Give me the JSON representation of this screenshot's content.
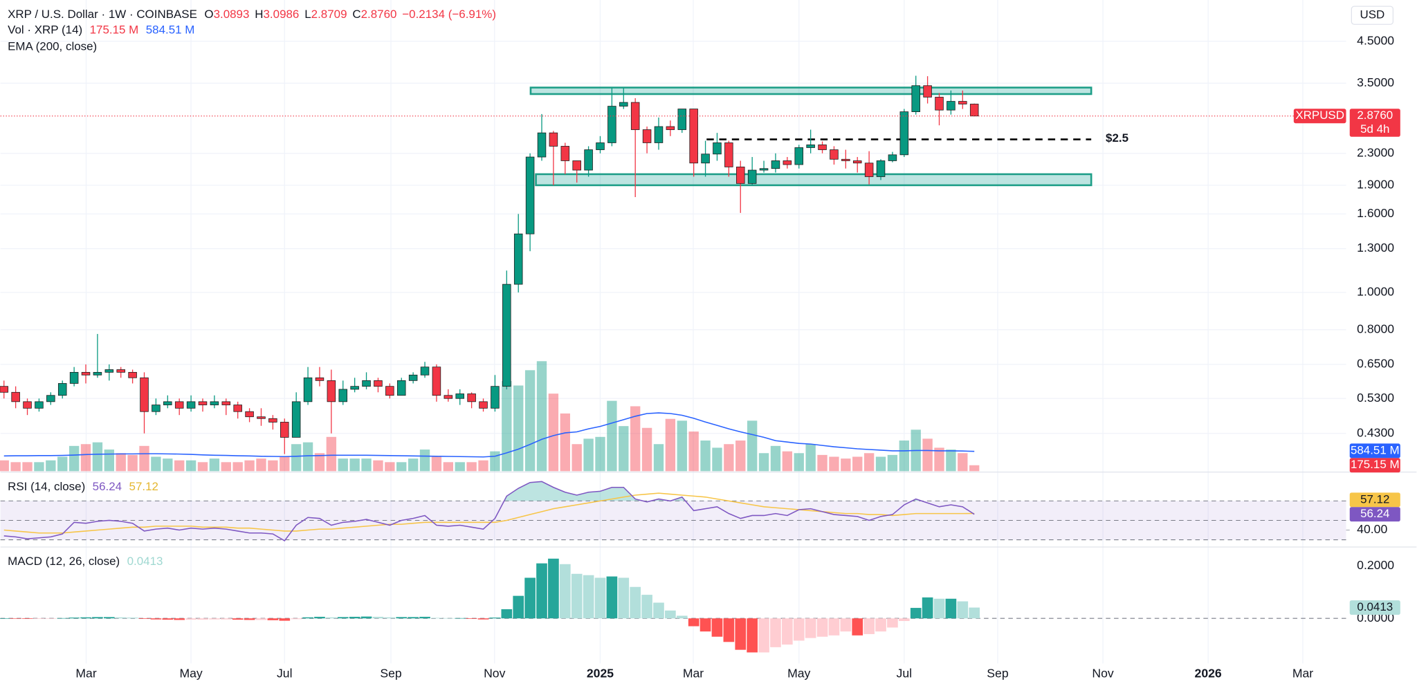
{
  "chart_data": [
    {
      "type": "candlestick",
      "title": "XRP / U.S. Dollar · 1W · COINBASE",
      "ohlc": [
        {
          "label": "O",
          "value": "3.0893"
        },
        {
          "label": "H",
          "value": "3.0986"
        },
        {
          "label": "L",
          "value": "2.8709"
        },
        {
          "label": "C",
          "value": "2.8760"
        }
      ],
      "change": "−0.2134 (−6.91%)",
      "ema_name": "EMA (200, close)",
      "up_color": "#089981",
      "down_color": "#f23645",
      "log": true,
      "grid": true,
      "y_unit": "USD",
      "ylim": [
        0.343,
        5.76
      ],
      "yticks": [
        {
          "value": 4.5,
          "label": "4.5000"
        },
        {
          "value": 3.5,
          "label": "3.5000"
        },
        {
          "value": 2.3,
          "label": "2.3000"
        },
        {
          "value": 1.9,
          "label": "1.9000"
        },
        {
          "value": 1.6,
          "label": "1.6000"
        },
        {
          "value": 1.3,
          "label": "1.3000"
        },
        {
          "value": 1.0,
          "label": "1.0000"
        },
        {
          "value": 0.8,
          "label": "0.8000"
        },
        {
          "value": 0.65,
          "label": "0.6500"
        },
        {
          "value": 0.53,
          "label": "0.5300"
        },
        {
          "value": 0.43,
          "label": "0.4300"
        }
      ],
      "xlim": [
        -0.3,
        114.8
      ],
      "xticks": [
        {
          "value": 7.03,
          "label": "Mar"
        },
        {
          "value": 16.0,
          "label": "May"
        },
        {
          "value": 24.0,
          "label": "Jul"
        },
        {
          "value": 33.1,
          "label": "Sep"
        },
        {
          "value": 41.96,
          "label": "Nov"
        },
        {
          "value": 51.0,
          "label": "2025"
        },
        {
          "value": 58.96,
          "label": "Mar"
        },
        {
          "value": 68.0,
          "label": "May"
        },
        {
          "value": 77.0,
          "label": "Jul"
        },
        {
          "value": 85.0,
          "label": "Sep"
        },
        {
          "value": 94.0,
          "label": "Nov"
        },
        {
          "value": 103.0,
          "label": "2026"
        },
        {
          "value": 111.1,
          "label": "Mar"
        }
      ],
      "open": [
        0.57,
        0.55,
        0.52,
        0.5,
        0.52,
        0.54,
        0.58,
        0.62,
        0.61,
        0.62,
        0.63,
        0.62,
        0.6,
        0.49,
        0.51,
        0.52,
        0.5,
        0.52,
        0.51,
        0.52,
        0.51,
        0.49,
        0.475,
        0.47,
        0.46,
        0.42,
        0.52,
        0.6,
        0.59,
        0.52,
        0.56,
        0.57,
        0.59,
        0.57,
        0.54,
        0.59,
        0.61,
        0.64,
        0.54,
        0.53,
        0.545,
        0.52,
        0.5,
        0.57,
        1.05,
        1.42,
        2.25,
        2.6,
        2.4,
        2.2,
        2.08,
        2.35,
        2.45,
        3.05,
        3.12,
        2.65,
        2.45,
        2.7,
        2.65,
        3.0,
        2.17,
        2.29,
        2.45,
        2.12,
        1.92,
        2.08,
        2.1,
        2.2,
        2.15,
        2.38,
        2.42,
        2.35,
        2.22,
        2.2,
        2.17,
        2.0,
        2.2,
        2.28,
        2.95,
        3.45,
        3.22,
        2.98,
        3.14,
        3.0893
      ],
      "high": [
        0.59,
        0.57,
        0.53,
        0.53,
        0.55,
        0.59,
        0.64,
        0.65,
        0.78,
        0.65,
        0.64,
        0.63,
        0.62,
        0.53,
        0.54,
        0.53,
        0.54,
        0.53,
        0.54,
        0.53,
        0.52,
        0.5,
        0.5,
        0.48,
        0.47,
        0.55,
        0.64,
        0.64,
        0.63,
        0.59,
        0.6,
        0.62,
        0.6,
        0.58,
        0.6,
        0.62,
        0.66,
        0.65,
        0.56,
        0.56,
        0.55,
        0.53,
        0.61,
        1.14,
        1.6,
        2.3,
        2.91,
        2.63,
        2.45,
        2.2,
        2.4,
        2.55,
        3.4,
        3.4,
        3.2,
        2.7,
        2.85,
        2.8,
        3.0,
        3.0,
        2.48,
        2.6,
        2.48,
        2.2,
        2.25,
        2.2,
        2.3,
        2.25,
        2.42,
        2.65,
        2.47,
        2.4,
        2.35,
        2.25,
        2.33,
        2.22,
        2.32,
        3.0,
        3.66,
        3.65,
        3.3,
        3.35,
        3.35,
        3.0986
      ],
      "low": [
        0.53,
        0.5,
        0.48,
        0.49,
        0.51,
        0.53,
        0.57,
        0.58,
        0.6,
        0.59,
        0.6,
        0.58,
        0.43,
        0.48,
        0.5,
        0.48,
        0.49,
        0.49,
        0.5,
        0.48,
        0.47,
        0.46,
        0.45,
        0.44,
        0.38,
        0.42,
        0.51,
        0.57,
        0.43,
        0.51,
        0.55,
        0.56,
        0.55,
        0.53,
        0.54,
        0.58,
        0.6,
        0.52,
        0.52,
        0.51,
        0.5,
        0.49,
        0.49,
        0.56,
        1.0,
        1.28,
        2.2,
        1.9,
        2.03,
        1.93,
        2.0,
        2.3,
        2.4,
        3.0,
        1.77,
        2.3,
        2.35,
        2.55,
        2.6,
        2.0,
        2.0,
        2.2,
        2.0,
        1.61,
        1.9,
        2.05,
        2.05,
        2.1,
        2.1,
        2.3,
        2.3,
        2.15,
        2.1,
        2.05,
        1.91,
        1.96,
        2.18,
        2.25,
        2.9,
        3.1,
        2.72,
        2.9,
        3.0,
        2.8709
      ],
      "close": [
        0.55,
        0.52,
        0.5,
        0.52,
        0.54,
        0.58,
        0.62,
        0.61,
        0.62,
        0.63,
        0.62,
        0.6,
        0.49,
        0.51,
        0.52,
        0.5,
        0.52,
        0.51,
        0.52,
        0.51,
        0.49,
        0.475,
        0.47,
        0.46,
        0.42,
        0.52,
        0.6,
        0.59,
        0.52,
        0.56,
        0.57,
        0.59,
        0.57,
        0.54,
        0.59,
        0.61,
        0.64,
        0.54,
        0.53,
        0.545,
        0.52,
        0.5,
        0.57,
        1.05,
        1.42,
        2.25,
        2.6,
        2.4,
        2.2,
        2.08,
        2.35,
        2.45,
        3.05,
        3.12,
        2.65,
        2.45,
        2.7,
        2.65,
        3.0,
        2.17,
        2.29,
        2.45,
        2.12,
        1.92,
        2.08,
        2.1,
        2.2,
        2.15,
        2.38,
        2.42,
        2.35,
        2.22,
        2.2,
        2.17,
        2.0,
        2.2,
        2.28,
        2.95,
        3.45,
        3.22,
        2.98,
        3.14,
        3.0893,
        2.876
      ],
      "last_price": {
        "symbol": "XRPUSD",
        "label": "2.8760",
        "countdown": "5d 4h"
      },
      "zones": [
        {
          "from": 45.05,
          "to": 93.0,
          "low": 3.28,
          "high": 3.41
        },
        {
          "from": 45.5,
          "to": 93.0,
          "low": 1.9,
          "high": 2.03
        }
      ],
      "level": {
        "value": 2.5,
        "from": 60.1,
        "to": 93.0,
        "label": "$2.5"
      },
      "volume": {
        "name": "Vol · XRP (14)",
        "legend_values": [
          "175.15 M",
          "584.51 M"
        ],
        "ylim": [
          0,
          13900
        ],
        "values": [
          319,
          266,
          266,
          266,
          319,
          426,
          745,
          798,
          851,
          638,
          532,
          479,
          745,
          426,
          372,
          319,
          319,
          266,
          372,
          266,
          266,
          319,
          372,
          319,
          426,
          798,
          851,
          532,
          1011,
          372,
          372,
          372,
          319,
          266,
          266,
          372,
          638,
          426,
          266,
          266,
          266,
          319,
          585,
          2660,
          2527,
          2979,
          3245,
          2288,
          1702,
          798,
          958,
          1011,
          2075,
          1330,
          1915,
          1277,
          798,
          1543,
          1490,
          1170,
          904,
          692,
          798,
          904,
          1490,
          532,
          745,
          585,
          532,
          798,
          479,
          426,
          372,
          426,
          532,
          426,
          479,
          904,
          1224,
          958,
          692,
          638,
          532,
          175.15
        ],
        "ma": {
          "color": "#2962ff",
          "values": [
            450,
            455,
            455,
            460,
            460,
            465,
            475,
            490,
            500,
            505,
            510,
            510,
            515,
            515,
            510,
            505,
            495,
            480,
            470,
            465,
            455,
            450,
            440,
            435,
            430,
            440,
            455,
            460,
            470,
            470,
            470,
            470,
            465,
            460,
            455,
            450,
            445,
            440,
            435,
            430,
            425,
            420,
            440,
            540,
            650,
            790,
            940,
            1050,
            1130,
            1160,
            1250,
            1320,
            1420,
            1520,
            1620,
            1700,
            1720,
            1700,
            1650,
            1560,
            1450,
            1350,
            1250,
            1160,
            1080,
            1000,
            900,
            860,
            820,
            800,
            760,
            720,
            690,
            660,
            640,
            620,
            600,
            600,
            610,
            610,
            600,
            600,
            595,
            584.51
          ]
        }
      }
    },
    {
      "type": "line",
      "title": "RSI (14, close)",
      "ylim": [
        23.5,
        98.8
      ],
      "yticks": [
        {
          "value": 40,
          "label": "40.00"
        }
      ],
      "levels": [
        70,
        50,
        30
      ],
      "band_color": "#7e57c2",
      "overbought_color": "#26a69a",
      "series": [
        {
          "color": "#7e57c2",
          "values": [
            34,
            33,
            31,
            32,
            33,
            36,
            48,
            47,
            49,
            50,
            49,
            47,
            39,
            41,
            42,
            40,
            42,
            41,
            42,
            41,
            39,
            37,
            37,
            36,
            29,
            45,
            53,
            52,
            45,
            48,
            49,
            51,
            48,
            45,
            50,
            52,
            55,
            45,
            44,
            45,
            43,
            41,
            52,
            75,
            83,
            89,
            90,
            84,
            79,
            76,
            79,
            80,
            84,
            84,
            72,
            69,
            72,
            70,
            74,
            60,
            62,
            64,
            57,
            52,
            55,
            55,
            57,
            55,
            61,
            62,
            59,
            56,
            55,
            54,
            50,
            54,
            56,
            66,
            72,
            68,
            64,
            66,
            64,
            56.24
          ]
        },
        {
          "color": "#f7c548",
          "values": [
            40,
            39,
            38,
            37,
            37,
            37,
            38,
            39,
            40,
            41,
            42,
            43,
            43,
            44,
            44,
            44,
            44,
            43,
            43,
            43,
            42,
            42,
            41,
            40,
            39,
            39,
            40,
            41,
            41,
            42,
            43,
            44,
            45,
            46,
            46,
            47,
            48,
            48,
            48,
            48,
            48,
            48,
            48,
            50,
            53,
            56,
            59,
            62,
            64,
            66,
            68,
            70,
            72,
            74,
            76,
            77,
            78,
            77,
            76,
            75,
            74,
            72,
            70,
            68,
            66,
            64,
            63,
            62,
            61,
            60,
            59,
            58,
            57,
            57,
            56,
            56,
            55,
            56,
            57,
            57,
            57,
            57,
            57,
            57.12
          ]
        }
      ]
    },
    {
      "type": "bar",
      "title": "MACD (12, 26, close)",
      "ylim": [
        -0.172,
        0.269
      ],
      "yticks": [
        {
          "value": 0.2,
          "label": "0.2000"
        },
        {
          "value": 0,
          "label": "0.0000"
        }
      ],
      "colors": {
        "pos_up": "#26a69a",
        "pos_down": "#b2dfdb",
        "neg_down": "#ff5252",
        "neg_up": "#ffcdd2"
      },
      "values": [
        0,
        -0.001,
        -0.002,
        -0.002,
        -0.001,
        0.001,
        0.003,
        0.004,
        0.005,
        0.005,
        0.004,
        0.003,
        -0.002,
        -0.004,
        -0.005,
        -0.006,
        -0.005,
        -0.005,
        -0.004,
        -0.004,
        -0.005,
        -0.006,
        -0.006,
        -0.007,
        -0.009,
        -0.003,
        0.004,
        0.006,
        0.004,
        0.005,
        0.006,
        0.007,
        0.006,
        0.004,
        0.005,
        0.005,
        0.006,
        0.002,
        0.001,
        0.001,
        -0.002,
        -0.004,
        0.003,
        0.035,
        0.086,
        0.155,
        0.21,
        0.228,
        0.207,
        0.17,
        0.165,
        0.155,
        0.16,
        0.155,
        0.12,
        0.09,
        0.06,
        0.03,
        0.01,
        -0.03,
        -0.05,
        -0.07,
        -0.09,
        -0.12,
        -0.13,
        -0.13,
        -0.11,
        -0.1,
        -0.085,
        -0.075,
        -0.07,
        -0.065,
        -0.05,
        -0.065,
        -0.06,
        -0.05,
        -0.035,
        -0.01,
        0.04,
        0.08,
        0.075,
        0.075,
        0.065,
        0.0413
      ]
    }
  ]
}
